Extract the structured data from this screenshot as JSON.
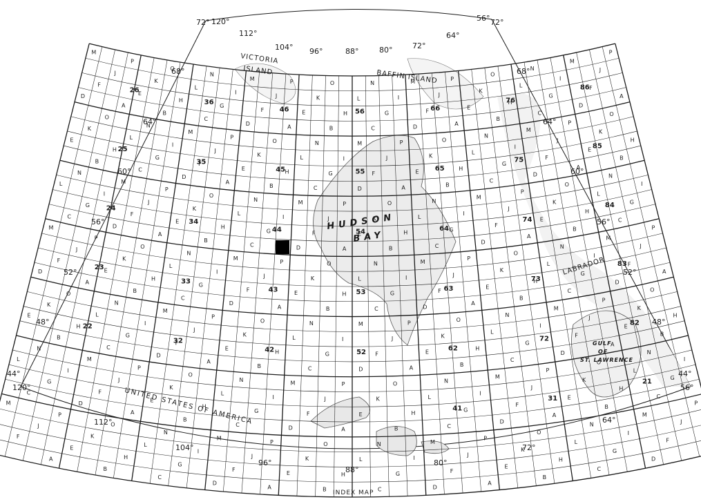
{
  "caption": "INDEX MAP",
  "colors": {
    "ink": "#1a1a1a",
    "water": "#f0f0f0",
    "land": "#ffffff",
    "highlight": "#000000"
  },
  "longitude_labels": {
    "top": [
      "120°",
      "112°",
      "104°",
      "96°",
      "88°",
      "80°",
      "72°",
      "64°",
      "56°"
    ],
    "bottom": [
      "120°",
      "112°",
      "104°",
      "96°",
      "88°",
      "80°",
      "72°",
      "64°",
      "56°"
    ]
  },
  "latitude_labels": {
    "left": [
      "72°",
      "68°",
      "64°",
      "60°",
      "56°",
      "52°",
      "48°",
      "44°"
    ],
    "right": [
      "72°",
      "68°",
      "64°",
      "60°",
      "56°",
      "52°",
      "48°",
      "44°"
    ]
  },
  "regions": {
    "victoria_island": [
      "VICTORIA",
      "ISLAND"
    ],
    "baffin_island": "BAFFIN  ISLAND",
    "hudson": "HUDSON",
    "bay": "BAY",
    "labrador": "LABRADOR",
    "gulf": [
      "GULF",
      "OF",
      "ST. LAWRENCE"
    ],
    "usa": "UNITED STATES OF AMERICA"
  },
  "sheet_numbers": [
    "86",
    "76",
    "66",
    "56",
    "46",
    "36",
    "26",
    "85",
    "75",
    "65",
    "55",
    "45",
    "35",
    "25",
    "84",
    "74",
    "64",
    "54",
    "44",
    "34",
    "24",
    "83",
    "73",
    "63",
    "53",
    "43",
    "33",
    "23",
    "82",
    "72",
    "62",
    "52",
    "42",
    "32",
    "22",
    "21",
    "31",
    "41"
  ],
  "grid_letter_rows": [
    [
      "M",
      "N",
      "O",
      "P",
      "M",
      "N",
      "O",
      "P",
      "M",
      "N",
      "O",
      "P",
      "M",
      "N",
      "O",
      "P"
    ],
    [
      "L",
      "K",
      "J",
      "I",
      "L",
      "K",
      "J",
      "I",
      "L",
      "K",
      "J",
      "I",
      "L",
      "K",
      "J",
      "I"
    ],
    [
      "E",
      "F",
      "G",
      "H",
      "E",
      "F",
      "G",
      "H",
      "E",
      "F",
      "G",
      "H",
      "E",
      "F",
      "G",
      "H"
    ],
    [
      "D",
      "C",
      "B",
      "A",
      "D",
      "C",
      "B",
      "A",
      "D",
      "C",
      "B",
      "A",
      "D",
      "C",
      "B",
      "A"
    ]
  ],
  "highlighted_sheet": "64-M"
}
